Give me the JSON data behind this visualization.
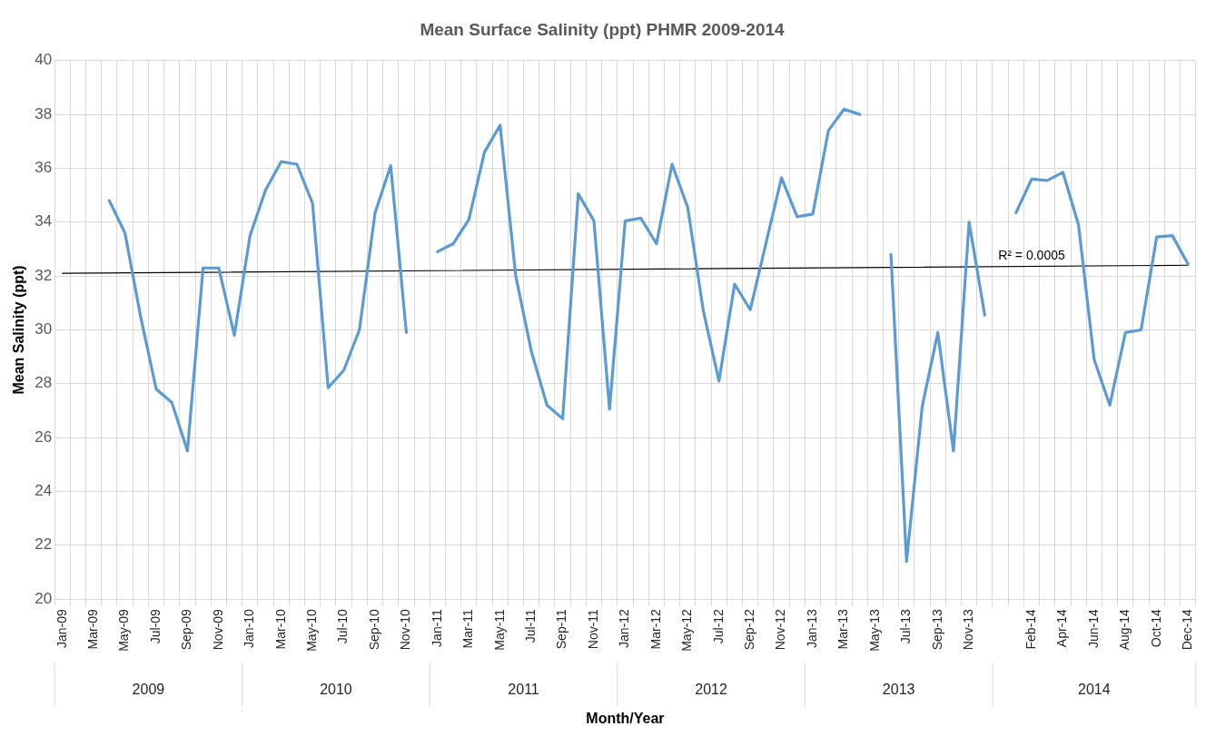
{
  "chart_data": {
    "type": "line",
    "title": "Mean Surface Salinity (ppt) PHMR 2009-2014",
    "xlabel": "Month/Year",
    "ylabel": "Mean Salinity (ppt)",
    "categories": [
      "Jan-09",
      null,
      "Mar-09",
      null,
      "May-09",
      null,
      "Jul-09",
      null,
      "Sep-09",
      null,
      "Nov-09",
      null,
      "Jan-10",
      null,
      "Mar-10",
      null,
      "May-10",
      null,
      "Jul-10",
      null,
      "Sep-10",
      null,
      "Nov-10",
      null,
      "Jan-11",
      null,
      "Mar-11",
      null,
      "May-11",
      null,
      "Jul-11",
      null,
      "Sep-11",
      null,
      "Nov-11",
      null,
      "Jan-12",
      null,
      "Mar-12",
      null,
      "May-12",
      null,
      "Jul-12",
      null,
      "Sep-12",
      null,
      "Nov-12",
      null,
      "Jan-13",
      null,
      "Mar-13",
      null,
      "May-13",
      null,
      "Jul-13",
      null,
      "Sep-13",
      null,
      "Nov-13",
      null,
      null,
      null,
      "Feb-14",
      null,
      "Apr-14",
      null,
      "Jun-14",
      null,
      "Aug-14",
      null,
      "Oct-14",
      null,
      "Dec-14"
    ],
    "series": [
      {
        "color": "#5b9bd5",
        "values": [
          null,
          null,
          null,
          34.8,
          33.6,
          30.5,
          27.8,
          27.3,
          25.5,
          32.3,
          32.3,
          29.8,
          33.5,
          35.2,
          36.25,
          36.15,
          34.7,
          27.85,
          28.5,
          30.0,
          34.35,
          36.1,
          29.9,
          null,
          32.9,
          33.2,
          34.1,
          36.6,
          37.6,
          32.0,
          29.2,
          27.2,
          26.7,
          35.05,
          34.05,
          27.05,
          34.05,
          34.15,
          33.2,
          36.15,
          34.55,
          30.7,
          28.1,
          31.7,
          30.75,
          33.2,
          35.65,
          34.2,
          34.3,
          37.4,
          38.2,
          38.0,
          null,
          32.8,
          21.4,
          27.15,
          29.9,
          25.5,
          34.0,
          30.55,
          null,
          34.35,
          35.6,
          35.55,
          35.85,
          33.9,
          28.9,
          27.2,
          29.9,
          30.0,
          33.45,
          33.5,
          32.45
        ]
      },
      {
        "type": "line",
        "color": "#000000",
        "x": [
          "Jan-09",
          "Dec-14"
        ],
        "values": [
          32.1,
          32.4
        ]
      }
    ],
    "ylim": [
      20,
      40
    ],
    "yticks": [
      20,
      22,
      24,
      26,
      28,
      30,
      32,
      34,
      36,
      38,
      40
    ],
    "grid": true,
    "legend": false,
    "marker": "none",
    "line_style": "solid",
    "annotations": [
      {
        "text": "R² = 0.0005",
        "x": "Feb-14",
        "y": 32.35
      },
      "2009",
      "2010",
      "2011",
      "2012",
      "2013",
      "2014"
    ]
  }
}
